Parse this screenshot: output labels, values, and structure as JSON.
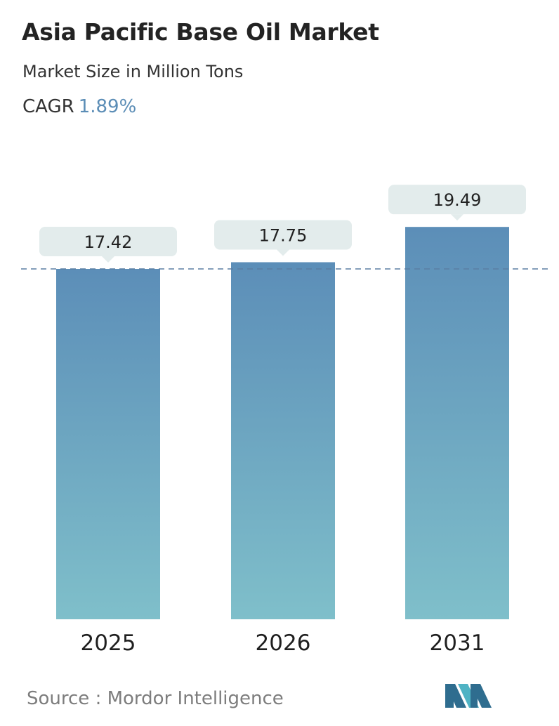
{
  "header": {
    "title": "Asia Pacific Base Oil Market",
    "subtitle": "Market Size in Million Tons",
    "cagr_label": "CAGR",
    "cagr_value": "1.89%"
  },
  "colors": {
    "cagr_value": "#5b8db6",
    "bar_top": "#5c8eb8",
    "bar_bottom": "#7fbfca",
    "label_box": "#e3ecec",
    "reference_line": "#5b7fa3",
    "logo_dark": "#2f6d8f",
    "logo_light": "#4fb3c4"
  },
  "chart_data": {
    "type": "bar",
    "categories": [
      "2025",
      "2026",
      "2031"
    ],
    "values": [
      17.42,
      17.75,
      19.49
    ],
    "value_labels": [
      "17.42",
      "17.75",
      "19.49"
    ],
    "reference_line": 17.42,
    "grid": false,
    "legend": "none"
  },
  "footer": {
    "source": "Source :  Mordor Intelligence",
    "logo": "mordor-intelligence-logo"
  }
}
